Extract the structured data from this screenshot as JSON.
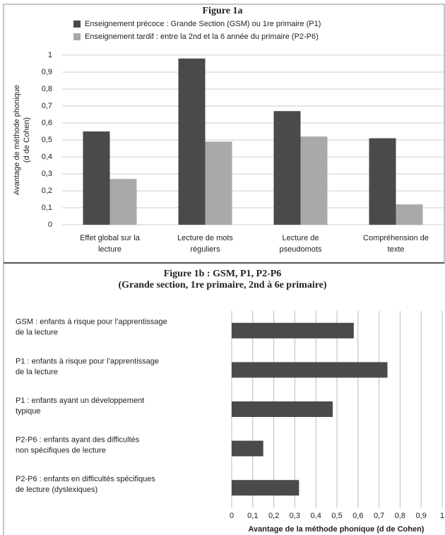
{
  "chart_data": [
    {
      "type": "bar",
      "title": "Figure 1a",
      "ylabel": [
        "Avantage de méthode phonique",
        "(d de Cohen)"
      ],
      "categories": [
        [
          "Effet global sur la",
          "lecture"
        ],
        [
          "Lecture de mots",
          "réguliers"
        ],
        [
          "Lecture de",
          "pseudomots"
        ],
        [
          "Compréhension de",
          "texte"
        ]
      ],
      "series": [
        {
          "name": "Enseignement précoce : Grande Section (GSM) ou 1re primaire (P1)",
          "color": "#4a4a4a",
          "values": [
            0.55,
            0.98,
            0.67,
            0.51
          ]
        },
        {
          "name": "Enseignement tardif : entre la 2nd et la 6 année du primaire (P2-P6)",
          "color": "#a9a9a9",
          "values": [
            0.27,
            0.49,
            0.52,
            0.12
          ]
        }
      ],
      "ylim": [
        0,
        1
      ],
      "yticks": [
        0,
        {
          "value": 0.1,
          "label": "0,1"
        },
        {
          "value": 0.2,
          "label": "0,2"
        },
        {
          "value": 0.3,
          "label": "0,3"
        },
        {
          "value": 0.4,
          "label": "0,4"
        },
        {
          "value": 0.5,
          "label": "0,5"
        },
        {
          "value": 0.6,
          "label": "0,6"
        },
        {
          "value": 0.7,
          "label": "0,7"
        },
        {
          "value": 0.8,
          "label": "0,8"
        },
        {
          "value": 0.9,
          "label": "0,9"
        },
        1
      ],
      "grid": true
    },
    {
      "type": "hbar",
      "title": [
        "Figure 1b : GSM, P1, P2-P6",
        "(Grande section, 1re primaire, 2nd à 6e primaire)"
      ],
      "xlabel": "Avantage de la méthode phonique (d de Cohen)",
      "categories": [
        [
          "GSM : enfants à risque pour l’apprentissage",
          "de la lecture"
        ],
        [
          "P1 : enfants à risque pour l’apprentissage",
          "de la lecture"
        ],
        [
          "P1 : enfants ayant un développement",
          "typique"
        ],
        [
          "P2-P6 : enfants ayant des difficultés",
          "non spécifiques de lecture"
        ],
        [
          "P2-P6 : enfants en difficultés spécifiques",
          "de lecture (dyslexiques)"
        ]
      ],
      "values": [
        0.58,
        0.74,
        0.48,
        0.15,
        0.32
      ],
      "color": "#4a4a4a",
      "xlim": [
        0,
        1
      ],
      "xticks": [
        0,
        {
          "value": 0.1,
          "label": "0,1"
        },
        {
          "value": 0.2,
          "label": "0,2"
        },
        {
          "value": 0.3,
          "label": "0,3"
        },
        {
          "value": 0.4,
          "label": "0,4"
        },
        {
          "value": 0.5,
          "label": "0,5"
        },
        {
          "value": 0.6,
          "label": "0,6"
        },
        {
          "value": 0.7,
          "label": "0,7"
        },
        {
          "value": 0.8,
          "label": "0,8"
        },
        {
          "value": 0.9,
          "label": "0,9"
        },
        1
      ],
      "grid": true
    }
  ]
}
